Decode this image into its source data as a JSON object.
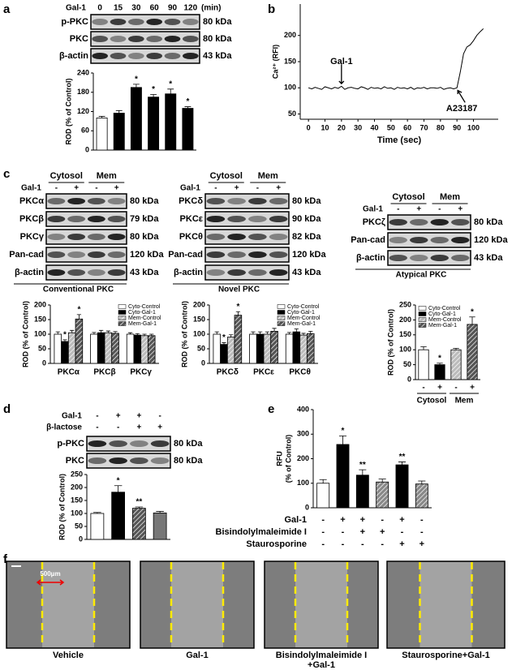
{
  "panel_labels": [
    "a",
    "b",
    "c",
    "d",
    "e",
    "f"
  ],
  "blots": [
    {
      "treatments": [
        {
          "name": "Gal-1",
          "lanes": [
            "0",
            "15",
            "30",
            "60",
            "90",
            "120"
          ]
        }
      ],
      "unit": "(min)",
      "rows": [
        {
          "protein": "p-PKC",
          "size": "80 kDa"
        },
        {
          "protein": "PKC",
          "size": "80 kDa"
        },
        {
          "protein": "β-actin",
          "size": "43 kDa"
        }
      ]
    },
    {
      "groups": [
        "Cytosol",
        "Mem"
      ],
      "treatments": [
        {
          "name": "Gal-1",
          "lanes": [
            "-",
            "+",
            "-",
            "+"
          ]
        }
      ],
      "rows": [
        {
          "protein": "PKCα",
          "size": "80 kDa"
        },
        {
          "protein": "PKCβ",
          "size": "79 kDa"
        },
        {
          "protein": "PKCγ",
          "size": "80 kDa"
        },
        {
          "protein": "Pan-cad",
          "size": "120 kDa"
        },
        {
          "protein": "β-actin",
          "size": "43 kDa"
        }
      ],
      "caption": "Conventional PKC"
    },
    {
      "groups": [
        "Cytosol",
        "Mem"
      ],
      "treatments": [
        {
          "name": "Gal-1",
          "lanes": [
            "-",
            "+",
            "-",
            "+"
          ]
        }
      ],
      "rows": [
        {
          "protein": "PKCδ",
          "size": "80 kDa"
        },
        {
          "protein": "PKCε",
          "size": "90 kDa"
        },
        {
          "protein": "PKCθ",
          "size": "82 kDa"
        },
        {
          "protein": "Pan-cad",
          "size": "120 kDa"
        },
        {
          "protein": "β-actin",
          "size": "43 kDa"
        }
      ],
      "caption": "Novel PKC"
    },
    {
      "groups": [
        "Cytosol",
        "Mem"
      ],
      "treatments": [
        {
          "name": "Gal-1",
          "lanes": [
            "-",
            "+",
            "-",
            "+"
          ]
        }
      ],
      "rows": [
        {
          "protein": "PKCζ",
          "size": "80 kDa"
        },
        {
          "protein": "Pan-cad",
          "size": "120 kDa"
        },
        {
          "protein": "β-actin",
          "size": "43 kDa"
        }
      ],
      "caption": "Atypical PKC"
    },
    {
      "treatments": [
        {
          "name": "Gal-1",
          "lanes": [
            "-",
            "+",
            "+",
            "-"
          ]
        },
        {
          "name": "β-lactose",
          "lanes": [
            "-",
            "-",
            "+",
            "+"
          ]
        }
      ],
      "rows": [
        {
          "protein": "p-PKC",
          "size": "80 kDa"
        },
        {
          "protein": "PKC",
          "size": "80 kDa"
        }
      ]
    }
  ],
  "chart_data": [
    {
      "type": "bar",
      "ylabel": "ROD (% of Control)",
      "values": [
        100,
        115,
        195,
        165,
        175,
        130
      ],
      "errors": [
        5,
        8,
        10,
        8,
        15,
        5
      ],
      "colors": [
        "#ffffff",
        "#000000",
        "#000000",
        "#000000",
        "#000000",
        "#000000"
      ],
      "hatched": [
        false,
        false,
        false,
        false,
        false,
        false
      ],
      "significance": [
        null,
        null,
        "*",
        "*",
        "*",
        "*"
      ],
      "ylim": [
        0,
        240
      ],
      "yticks": [
        0,
        60,
        120,
        180,
        240
      ]
    },
    {
      "type": "line",
      "ylabel": "Ca²⁺ (RFI)",
      "xlabel": "Time (sec)",
      "color": "#000000",
      "x": [
        0,
        2,
        4,
        6,
        8,
        10,
        12,
        14,
        16,
        18,
        20,
        22,
        24,
        26,
        28,
        30,
        32,
        34,
        36,
        38,
        40,
        42,
        44,
        46,
        48,
        50,
        52,
        54,
        56,
        58,
        60,
        62,
        64,
        66,
        68,
        70,
        72,
        74,
        76,
        78,
        80,
        82,
        84,
        86,
        88,
        90,
        92,
        94,
        96,
        98,
        100,
        102,
        104,
        106
      ],
      "values": [
        100,
        98,
        101,
        99,
        97,
        102,
        100,
        98,
        101,
        99,
        103,
        97,
        100,
        101,
        99,
        98,
        102,
        100,
        97,
        101,
        99,
        100,
        98,
        102,
        99,
        100,
        97,
        101,
        99,
        100,
        98,
        101,
        97,
        100,
        99,
        101,
        98,
        100,
        100,
        99,
        101,
        97,
        99,
        100,
        98,
        100,
        130,
        165,
        178,
        182,
        190,
        200,
        207,
        213
      ],
      "annotations": [
        {
          "text": "Gal-1",
          "x": 20
        },
        {
          "text": "A23187",
          "x": 90
        }
      ],
      "xlim": [
        -5,
        115
      ],
      "xticks": [
        0,
        10,
        20,
        30,
        40,
        50,
        60,
        70,
        80,
        90,
        100
      ],
      "ylim": [
        40,
        260
      ],
      "yticks": [
        50,
        100,
        150,
        200
      ]
    },
    {
      "type": "bar",
      "ylabel": "ROD (% of Control)",
      "categories": [
        "PKCα",
        "PKCβ",
        "PKCγ"
      ],
      "series": [
        {
          "name": "Cyto-Control",
          "color": "#ffffff",
          "hatched": false,
          "values": [
            100,
            100,
            100
          ],
          "errors": [
            8,
            6,
            5
          ],
          "significance": [
            null,
            null,
            null
          ]
        },
        {
          "name": "Cyto-Gal-1",
          "color": "#000000",
          "hatched": false,
          "values": [
            75,
            105,
            97
          ],
          "errors": [
            6,
            8,
            5
          ],
          "significance": [
            "*",
            null,
            null
          ]
        },
        {
          "name": "Mem-Control",
          "color": "#bbbbbb",
          "hatched": true,
          "values": [
            105,
            105,
            95
          ],
          "errors": [
            8,
            6,
            5
          ],
          "significance": [
            null,
            null,
            null
          ]
        },
        {
          "name": "Mem-Gal-1",
          "color": "#555555",
          "hatched": true,
          "values": [
            152,
            103,
            95
          ],
          "errors": [
            15,
            6,
            5
          ],
          "significance": [
            "*",
            null,
            null
          ]
        }
      ],
      "legend": "top-right",
      "ylim": [
        0,
        200
      ],
      "yticks": [
        0,
        50,
        100,
        150,
        200
      ]
    },
    {
      "type": "bar",
      "ylabel": "ROD (% of Control)",
      "categories": [
        "PKCδ",
        "PKCε",
        "PKCθ"
      ],
      "series": [
        {
          "name": "Cyto-Control",
          "color": "#ffffff",
          "hatched": false,
          "values": [
            100,
            100,
            100
          ],
          "errors": [
            8,
            8,
            6
          ],
          "significance": [
            null,
            null,
            null
          ]
        },
        {
          "name": "Cyto-Gal-1",
          "color": "#000000",
          "hatched": false,
          "values": [
            65,
            100,
            108
          ],
          "errors": [
            6,
            8,
            10
          ],
          "significance": [
            "*",
            null,
            null
          ]
        },
        {
          "name": "Mem-Control",
          "color": "#bbbbbb",
          "hatched": true,
          "values": [
            90,
            100,
            97
          ],
          "errors": [
            8,
            8,
            6
          ],
          "significance": [
            null,
            null,
            null
          ]
        },
        {
          "name": "Mem-Gal-1",
          "color": "#555555",
          "hatched": true,
          "values": [
            165,
            110,
            102
          ],
          "errors": [
            12,
            10,
            8
          ],
          "significance": [
            "*",
            null,
            null
          ]
        }
      ],
      "legend": "top-right",
      "ylim": [
        0,
        200
      ],
      "yticks": [
        0,
        50,
        100,
        150,
        200
      ]
    },
    {
      "type": "bar",
      "ylabel": "ROD (% of Control)",
      "categories": [
        "-",
        "+",
        "-",
        "+"
      ],
      "groups": [
        "Cytosol",
        "Mem"
      ],
      "legend_names": [
        "Cyto-Control",
        "Cyto-Gal-1",
        "Mem-Control",
        "Mem-Gal-1"
      ],
      "values": [
        100,
        50,
        100,
        185
      ],
      "errors": [
        10,
        5,
        5,
        25
      ],
      "colors": [
        "#ffffff",
        "#000000",
        "#bbbbbb",
        "#555555"
      ],
      "hatched": [
        false,
        false,
        true,
        true
      ],
      "significance": [
        null,
        "*",
        null,
        "*"
      ],
      "legend": "top-left",
      "ylim": [
        0,
        250
      ],
      "yticks": [
        0,
        50,
        100,
        150,
        200,
        250
      ]
    },
    {
      "type": "bar",
      "ylabel": "ROD (% of Control)",
      "values": [
        100,
        182,
        120,
        102
      ],
      "errors": [
        4,
        25,
        5,
        6
      ],
      "colors": [
        "#ffffff",
        "#000000",
        "#555555",
        "#777777"
      ],
      "hatched": [
        false,
        false,
        true,
        false
      ],
      "significance": [
        null,
        "*",
        "**",
        null
      ],
      "ylim": [
        0,
        250
      ],
      "yticks": [
        0,
        50,
        100,
        150,
        200,
        250
      ]
    },
    {
      "type": "bar",
      "ylabel": [
        "RFU",
        "(% of Control)"
      ],
      "values": [
        100,
        258,
        133,
        105,
        175,
        97
      ],
      "errors": [
        15,
        35,
        22,
        12,
        12,
        12
      ],
      "colors": [
        "#ffffff",
        "#000000",
        "#000000",
        "#888888",
        "#000000",
        "#888888"
      ],
      "hatched": [
        false,
        false,
        false,
        true,
        false,
        true
      ],
      "significance": [
        null,
        "*",
        "**",
        null,
        "**",
        null
      ],
      "conditions": [
        {
          "name": "Gal-1",
          "signs": [
            "-",
            "+",
            "+",
            "-",
            "+",
            "-"
          ]
        },
        {
          "name": "Bisindolylmaleimide I",
          "signs": [
            "-",
            "-",
            "+",
            "+",
            "-",
            "-"
          ]
        },
        {
          "name": "Staurosporine",
          "signs": [
            "-",
            "-",
            "-",
            "-",
            "+",
            "+"
          ]
        }
      ],
      "ylim": [
        0,
        400
      ],
      "yticks": [
        0,
        100,
        200,
        300,
        400
      ]
    }
  ],
  "wound_images": {
    "scale_bar": "500μm",
    "captions": [
      [
        "Vehicle"
      ],
      [
        "Gal-1"
      ],
      [
        "Bisindolylmaleimide I",
        "+Gal-1"
      ],
      [
        "Staurosporine+Gal-1"
      ]
    ]
  }
}
